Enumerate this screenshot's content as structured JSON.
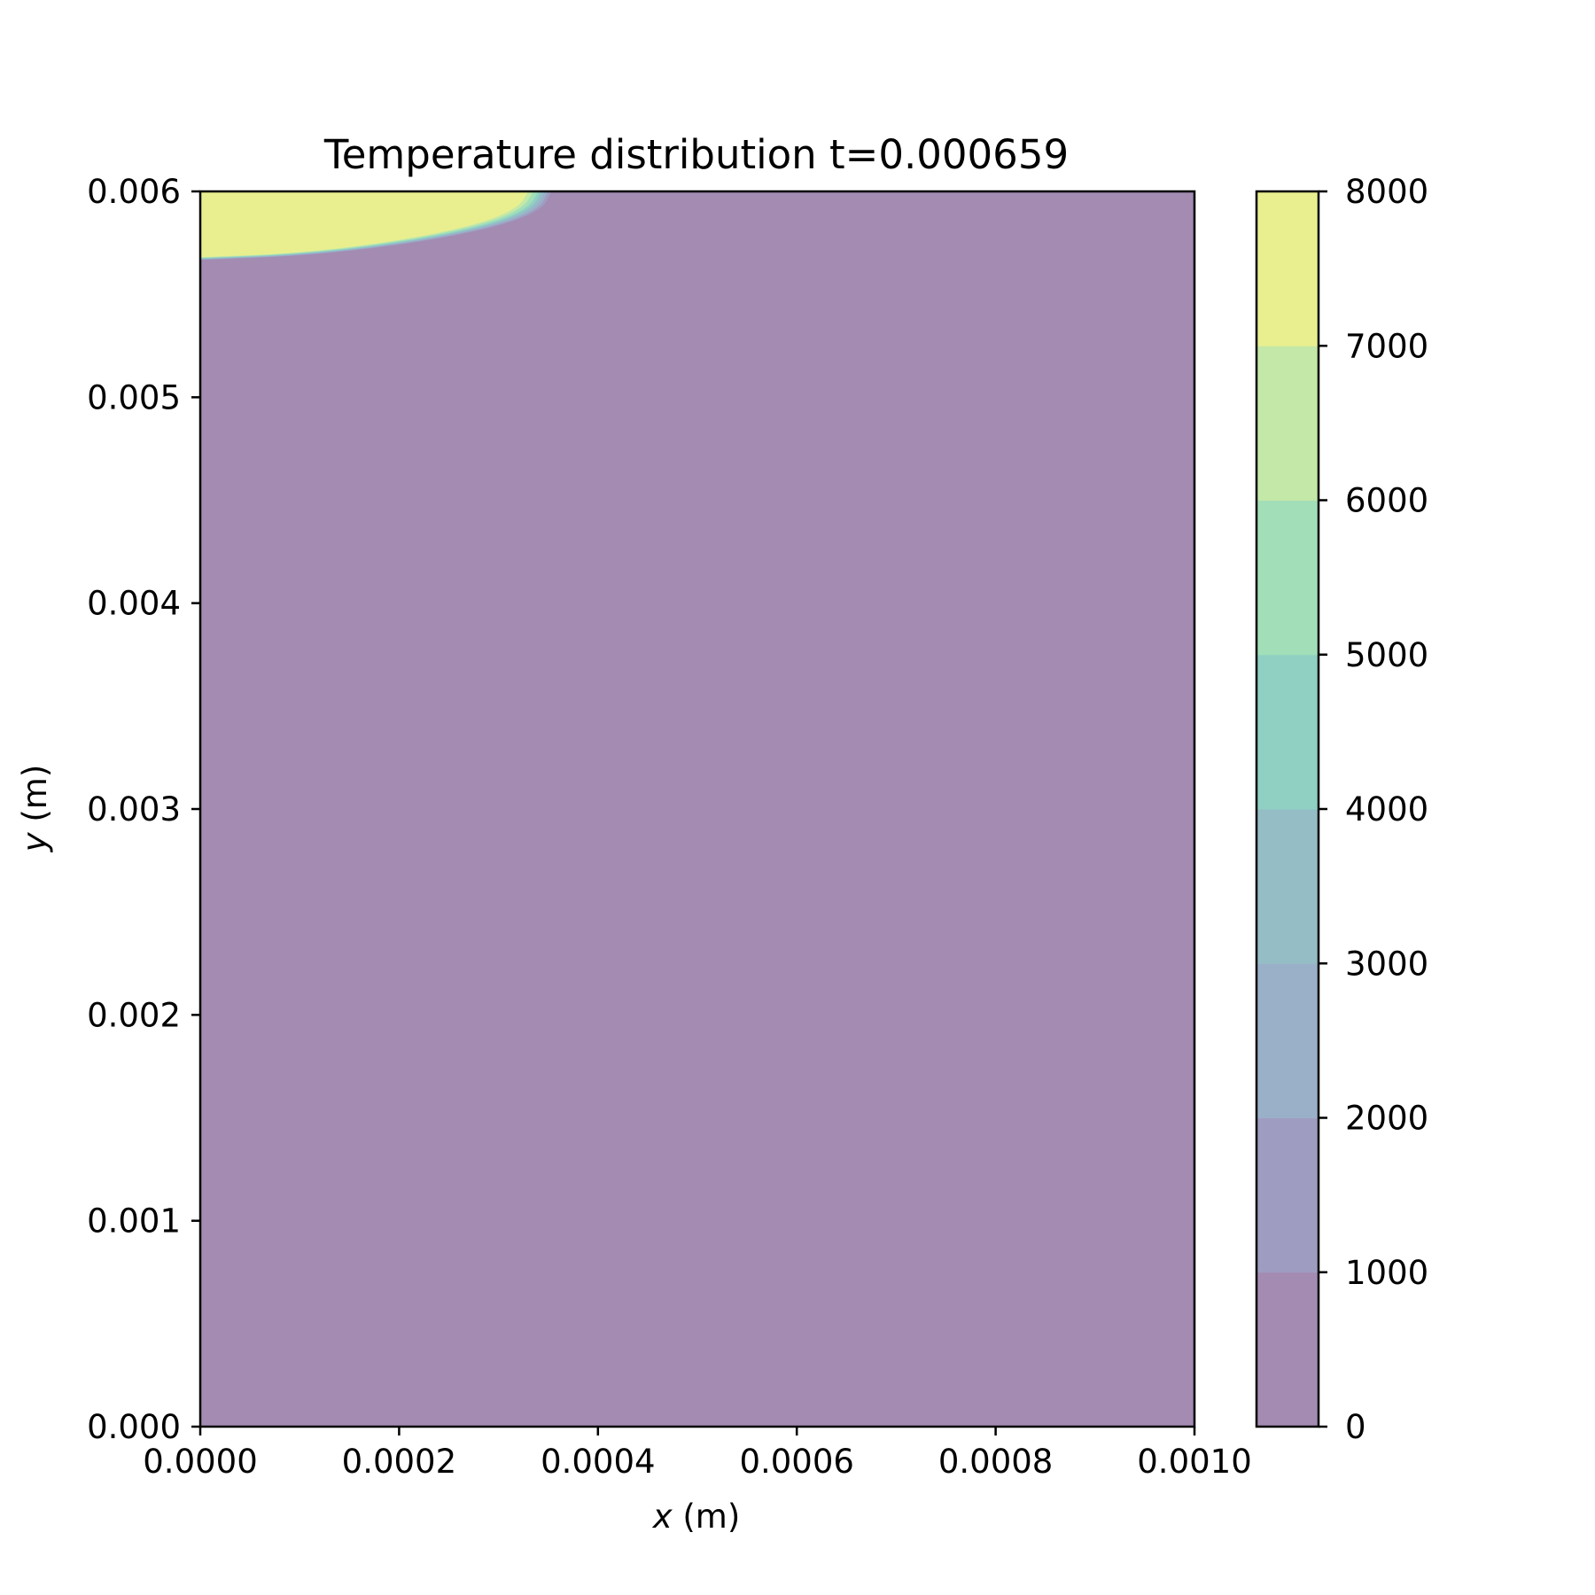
{
  "chart_data": {
    "type": "contour",
    "title": "Temperature distribution t=0.000659",
    "xlabel": {
      "var": "x",
      "unit": " (m)"
    },
    "ylabel": {
      "var": "y",
      "unit": " (m)"
    },
    "xlim": [
      0,
      0.001
    ],
    "ylim": [
      0,
      0.006
    ],
    "xticks": [
      "0.0000",
      "0.0002",
      "0.0004",
      "0.0006",
      "0.0008",
      "0.0010"
    ],
    "yticks": [
      "0.000",
      "0.001",
      "0.002",
      "0.003",
      "0.004",
      "0.005",
      "0.006"
    ],
    "grid": false,
    "background_level": {
      "range": [
        0,
        1000
      ],
      "color": "#a38bb2"
    },
    "hot_region": {
      "range": [
        7000,
        8000
      ],
      "color": "#e9ef8f",
      "x_extent_at_top": 0.00033,
      "y_bottom_at_x0": 0.00568,
      "boundary": [
        [
          0.0,
          0.00568
        ],
        [
          0.0001,
          0.0057
        ],
        [
          0.0002,
          0.00576
        ],
        [
          0.00028,
          0.00584
        ],
        [
          0.00032,
          0.00592
        ],
        [
          0.00033,
          0.006
        ]
      ]
    },
    "colorbar": {
      "ticks": [
        "0",
        "1000",
        "2000",
        "3000",
        "4000",
        "5000",
        "6000",
        "7000",
        "8000"
      ],
      "levels": [
        0,
        1000,
        2000,
        3000,
        4000,
        5000,
        6000,
        7000,
        8000
      ],
      "colors": [
        "#a38bb2",
        "#9f9cc1",
        "#9ab0c8",
        "#95bdc6",
        "#8fd0c3",
        "#a2dfb9",
        "#c4e8a7",
        "#e9ef8f"
      ]
    }
  }
}
